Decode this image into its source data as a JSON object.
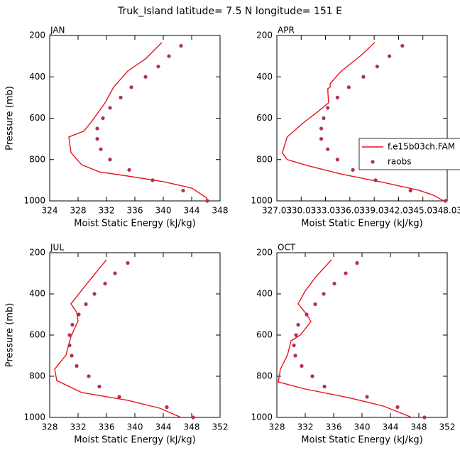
{
  "chart_data": [
    {
      "type": "line",
      "panel": "JAN",
      "title": "Truk_Island  latitude= 7.5 N longitude= 151 E",
      "x_label": "Moist Static Energy (kJ/kg)",
      "y_label": "Pressure (mb)",
      "xlim": [
        324,
        348
      ],
      "xticks": [
        324,
        328,
        332,
        336,
        340,
        344,
        348
      ],
      "ylim": [
        200,
        1000
      ],
      "yticks": [
        200,
        400,
        600,
        800,
        1000
      ],
      "y_inverted": true,
      "series": [
        {
          "style": "line",
          "color": "#e8141c",
          "x": [
            339.8,
            337.5,
            335,
            333,
            331.8,
            330,
            328.8,
            326.7,
            327,
            328.5,
            331,
            335,
            340,
            344,
            346,
            346.3
          ],
          "y": [
            234,
            313,
            372,
            450,
            526,
            612,
            663,
            691,
            767,
            825,
            860,
            880,
            907,
            938,
            983,
            1000
          ]
        },
        {
          "style": "dots",
          "color": "#b0305a",
          "x": [
            342.5,
            340.8,
            339.3,
            337.5,
            335.5,
            334,
            332.5,
            331.5,
            330.7,
            330.7,
            331.2,
            332.5,
            335.2,
            338.5,
            342.8,
            346.2
          ],
          "y": [
            250,
            300,
            350,
            400,
            450,
            500,
            550,
            600,
            650,
            700,
            750,
            800,
            850,
            900,
            950,
            1000
          ]
        }
      ]
    },
    {
      "type": "line",
      "panel": "APR",
      "x_label": "Moist Static Energy (kJ/kg)",
      "xlim": [
        327.03,
        348.03
      ],
      "xticks": [
        327.03,
        330.03,
        333.03,
        336.03,
        339.03,
        342.03,
        345.03,
        348.03
      ],
      "ylim": [
        200,
        1000
      ],
      "yticks": [
        200,
        400,
        600,
        800,
        1000
      ],
      "y_inverted": true,
      "legend": "right",
      "series": [
        {
          "name": "f.e15b03ch.FAM",
          "style": "line",
          "color": "#e8141c",
          "x": [
            339.1,
            337.4,
            334.9,
            333.6,
            333.6,
            333.3,
            333.4,
            332,
            330.4,
            328.3,
            327.7,
            328.3,
            330.7,
            334.9,
            340.2,
            344.5,
            346.3,
            347.6
          ],
          "y": [
            234,
            296,
            375,
            433,
            450,
            458,
            526,
            571,
            619,
            691,
            767,
            800,
            828,
            870,
            911,
            948,
            972,
            1000
          ]
        },
        {
          "name": "raobs",
          "style": "dots",
          "color": "#b0305a",
          "x": [
            342.5,
            340.9,
            339.4,
            337.7,
            335.9,
            334.5,
            333.3,
            332.8,
            332.5,
            332.5,
            333.3,
            334.5,
            336.4,
            339.2,
            343.5,
            347.8
          ],
          "y": [
            250,
            300,
            350,
            400,
            450,
            500,
            550,
            600,
            650,
            700,
            750,
            800,
            850,
            900,
            950,
            1000
          ]
        }
      ]
    },
    {
      "type": "line",
      "panel": "JUL",
      "x_label": "Moist Static Energy (kJ/kg)",
      "y_label": "Pressure (mb)",
      "xlim": [
        328,
        352
      ],
      "xticks": [
        328,
        332,
        336,
        340,
        344,
        348,
        352
      ],
      "ylim": [
        200,
        1000
      ],
      "yticks": [
        200,
        400,
        600,
        800,
        1000
      ],
      "y_inverted": true,
      "series": [
        {
          "style": "line",
          "color": "#e8141c",
          "x": [
            336,
            333.2,
            331,
            331.8,
            332,
            331,
            330.3,
            328.7,
            329,
            332.5,
            339,
            343.5,
            346.5
          ],
          "y": [
            234,
            352,
            448,
            490,
            531,
            607,
            697,
            766,
            821,
            879,
            917,
            955,
            1000
          ]
        },
        {
          "style": "dots",
          "color": "#b0305a",
          "x": [
            339,
            337.2,
            335.8,
            334.3,
            333.1,
            332.1,
            331.2,
            330.8,
            330.8,
            331.1,
            331.8,
            333.5,
            335,
            337.8,
            344.5,
            348.2
          ],
          "y": [
            250,
            300,
            350,
            400,
            450,
            500,
            550,
            600,
            650,
            700,
            750,
            800,
            850,
            900,
            950,
            1000
          ]
        }
      ]
    },
    {
      "type": "line",
      "panel": "OCT",
      "x_label": "Moist Static Energy (kJ/kg)",
      "xlim": [
        328,
        352
      ],
      "xticks": [
        328,
        332,
        336,
        340,
        344,
        348,
        352
      ],
      "ylim": [
        200,
        1000
      ],
      "yticks": [
        200,
        400,
        600,
        800,
        1000
      ],
      "y_inverted": true,
      "series": [
        {
          "style": "line",
          "color": "#e8141c",
          "x": [
            335.7,
            333.5,
            332,
            331,
            332.2,
            332.8,
            331.3,
            330,
            329.5,
            328.5,
            328.2,
            332,
            338,
            343,
            347
          ],
          "y": [
            234,
            317,
            386,
            448,
            500,
            534,
            600,
            628,
            697,
            766,
            828,
            862,
            903,
            945,
            1000
          ]
        },
        {
          "style": "dots",
          "color": "#b0305a",
          "x": [
            339.3,
            337.7,
            336.1,
            334.6,
            333.4,
            332.2,
            331,
            330.7,
            330.4,
            330.6,
            331.5,
            333,
            334.7,
            340.7,
            345,
            348.8
          ],
          "y": [
            250,
            300,
            350,
            400,
            450,
            500,
            550,
            600,
            650,
            700,
            750,
            800,
            850,
            900,
            950,
            1000
          ]
        }
      ]
    }
  ]
}
